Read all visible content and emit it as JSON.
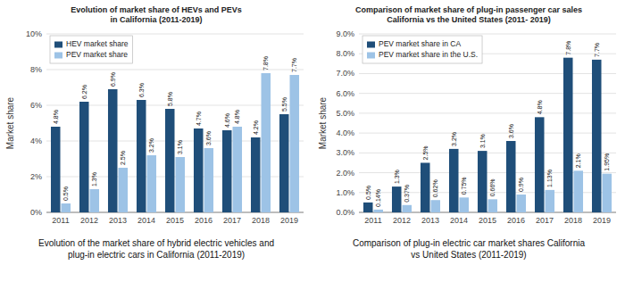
{
  "chart_data": [
    {
      "type": "bar",
      "title": "Evolution of market share of HEVs and PEVs\nin California (2011-2019)",
      "y_label": "Market share",
      "caption": "Evolution of the market share of hybrid electric vehicles and\nplug-in electric cars in California (2011-2019)",
      "categories": [
        "2011",
        "2012",
        "2013",
        "2014",
        "2015",
        "2016",
        "2017",
        "2018",
        "2019"
      ],
      "series": [
        {
          "name": "HEV market share",
          "color": "#1F4E79",
          "values": [
            4.8,
            6.2,
            6.9,
            6.3,
            5.8,
            4.7,
            4.6,
            4.2,
            5.5
          ],
          "value_labels": [
            "4.8%",
            "6.2%",
            "6.9%",
            "6.3%",
            "5.8%",
            "4.7%",
            "4.6%",
            "4.2%",
            "5.5%"
          ]
        },
        {
          "name": "PEV market share",
          "color": "#9DC3E6",
          "values": [
            0.5,
            1.3,
            2.5,
            3.2,
            3.1,
            3.6,
            4.8,
            7.8,
            7.7
          ],
          "value_labels": [
            "0.5%",
            "1.3%",
            "2.5%",
            "3.2%",
            "3.1%",
            "3.6%",
            "4.8%",
            "7.8%",
            "7.7%"
          ]
        }
      ],
      "ylim": [
        0,
        10
      ],
      "yticks": [
        {
          "value": 0,
          "label": "0%"
        },
        {
          "value": 2,
          "label": "2%"
        },
        {
          "value": 4,
          "label": "4%"
        },
        {
          "value": 6,
          "label": "6%"
        },
        {
          "value": 8,
          "label": "8%"
        },
        {
          "value": 10,
          "label": "10%"
        }
      ],
      "grid": true,
      "legend": "top-left",
      "data_labels": true
    },
    {
      "type": "bar",
      "title": "Comparison of market share of plug-in passenger car sales\nCalifornia vs the United States (2011- 2019)",
      "y_label": "Market share",
      "caption": "Comparison of plug-in electric car market shares California\nvs United States (2011-2019)",
      "categories": [
        "2011",
        "2012",
        "2013",
        "2014",
        "2015",
        "2016",
        "2017",
        "2018",
        "2019"
      ],
      "series": [
        {
          "name": "PEV market share in CA",
          "color": "#1F4E79",
          "values": [
            0.5,
            1.3,
            2.5,
            3.2,
            3.1,
            3.6,
            4.8,
            7.8,
            7.7
          ],
          "value_labels": [
            "0.5%",
            "1.3%",
            "2.5%",
            "3.2%",
            "3.1%",
            "3.6%",
            "4.8%",
            "7.8%",
            "7.7%"
          ]
        },
        {
          "name": "PEV market share in the U.S.",
          "color": "#9DC3E6",
          "values": [
            0.14,
            0.37,
            0.62,
            0.75,
            0.66,
            0.9,
            1.13,
            2.1,
            1.95
          ],
          "value_labels": [
            "0.14%",
            "0.37%",
            "0.62%",
            "0.75%",
            "0.66%",
            "0.9%",
            "1.13%",
            "2.1%",
            "1.95%"
          ]
        }
      ],
      "ylim": [
        0,
        9
      ],
      "yticks": [
        {
          "value": 0,
          "label": "0.0%"
        },
        {
          "value": 1,
          "label": "1.0%"
        },
        {
          "value": 2,
          "label": "2.0%"
        },
        {
          "value": 3,
          "label": "3.0%"
        },
        {
          "value": 4,
          "label": "4.0%"
        },
        {
          "value": 5,
          "label": "5.0%"
        },
        {
          "value": 6,
          "label": "6.0%"
        },
        {
          "value": 7,
          "label": "7.0%"
        },
        {
          "value": 8,
          "label": "8.0%"
        },
        {
          "value": 9,
          "label": "9.0%"
        }
      ],
      "grid": true,
      "legend": "top-left",
      "data_labels": true
    }
  ]
}
